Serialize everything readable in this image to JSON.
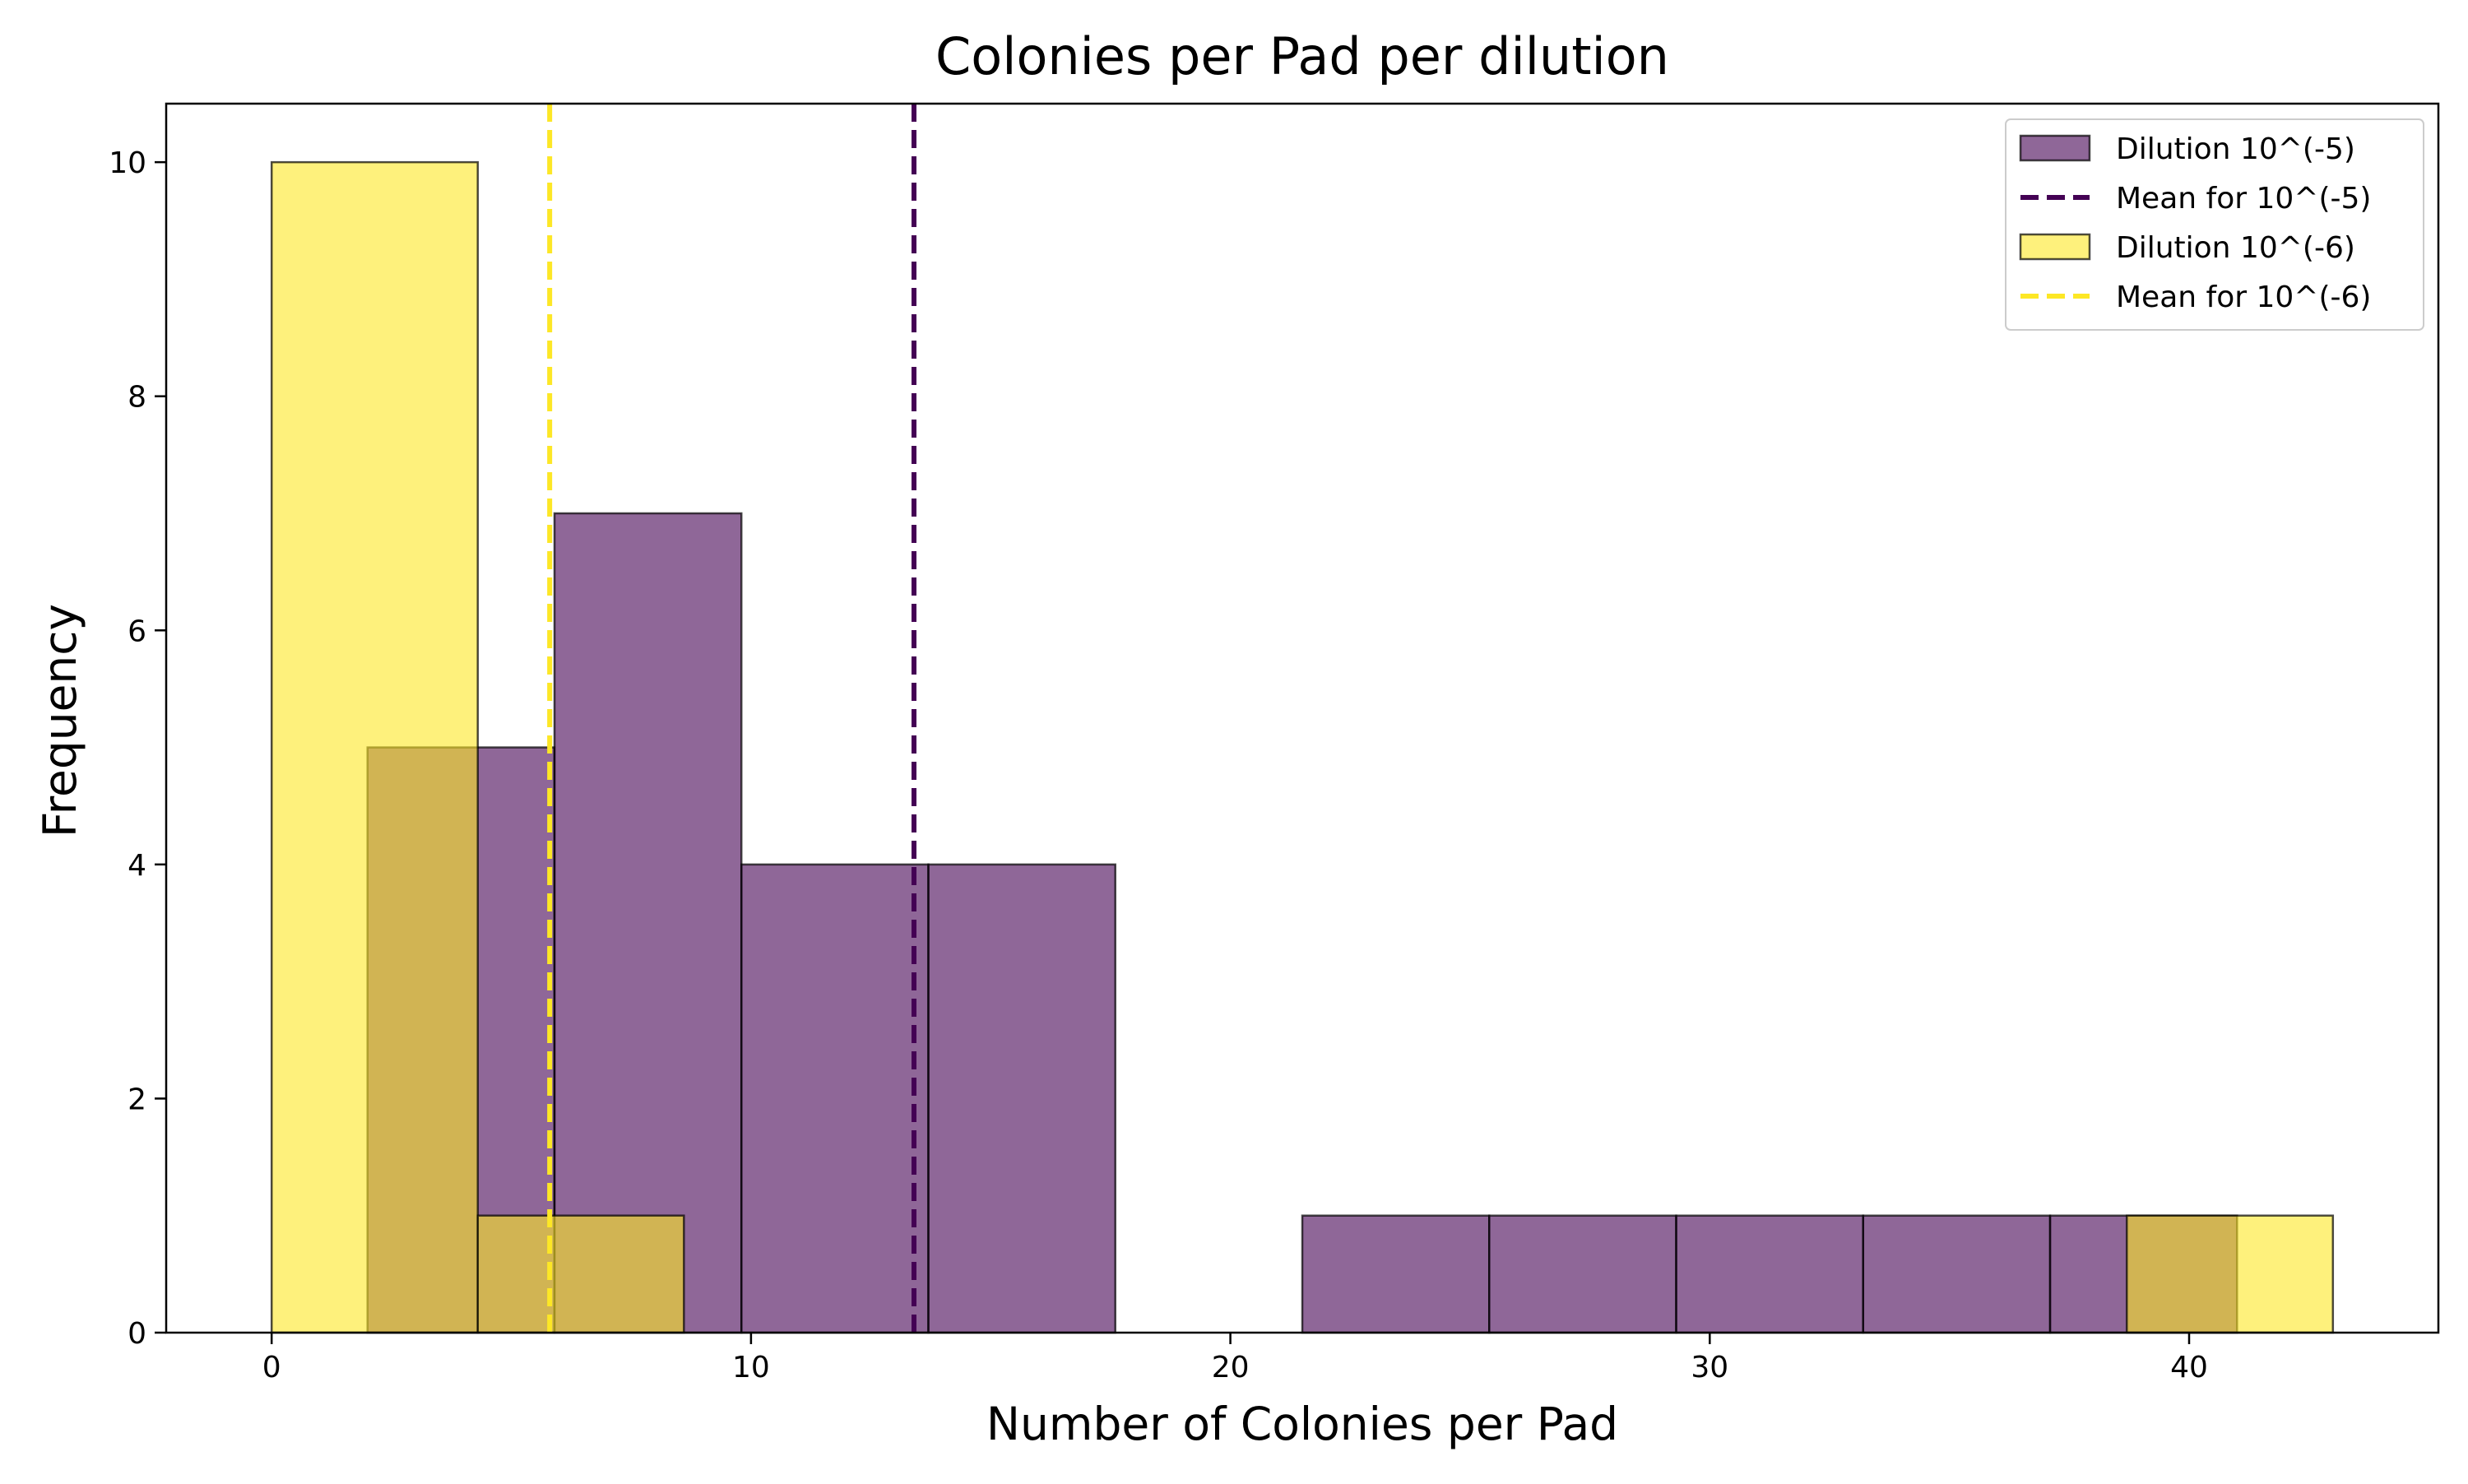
{
  "chart_data": {
    "type": "histogram",
    "title": "Colonies per Pad per dilution",
    "xlabel": "Number of Colonies per Pad",
    "ylabel": "Frequency",
    "xlim": [
      -2.2,
      45.2
    ],
    "ylim": [
      0,
      10.5
    ],
    "xticks": [
      0,
      10,
      20,
      30,
      40
    ],
    "yticks": [
      0,
      2,
      4,
      6,
      8,
      10
    ],
    "grid": false,
    "legend_position": "top-right",
    "series": [
      {
        "name": "Dilution 10^(-5)",
        "color": "#440154",
        "bins": [
          {
            "x0": 2,
            "x1": 5.9,
            "count": 5
          },
          {
            "x0": 5.9,
            "x1": 9.8,
            "count": 7
          },
          {
            "x0": 9.8,
            "x1": 13.7,
            "count": 4
          },
          {
            "x0": 13.7,
            "x1": 17.6,
            "count": 4
          },
          {
            "x0": 17.6,
            "x1": 21.5,
            "count": 0
          },
          {
            "x0": 21.5,
            "x1": 25.4,
            "count": 1
          },
          {
            "x0": 25.4,
            "x1": 29.3,
            "count": 1
          },
          {
            "x0": 29.3,
            "x1": 33.2,
            "count": 1
          },
          {
            "x0": 33.2,
            "x1": 37.1,
            "count": 1
          },
          {
            "x0": 37.1,
            "x1": 41,
            "count": 1
          }
        ]
      },
      {
        "name": "Dilution 10^(-6)",
        "color": "#fde725",
        "bins": [
          {
            "x0": 0,
            "x1": 4.3,
            "count": 10
          },
          {
            "x0": 4.3,
            "x1": 8.6,
            "count": 1
          },
          {
            "x0": 8.6,
            "x1": 12.9,
            "count": 0
          },
          {
            "x0": 12.9,
            "x1": 17.2,
            "count": 0
          },
          {
            "x0": 17.2,
            "x1": 21.5,
            "count": 0
          },
          {
            "x0": 21.5,
            "x1": 25.8,
            "count": 0
          },
          {
            "x0": 25.8,
            "x1": 30.1,
            "count": 0
          },
          {
            "x0": 30.1,
            "x1": 34.4,
            "count": 0
          },
          {
            "x0": 34.4,
            "x1": 38.7,
            "count": 0
          },
          {
            "x0": 38.7,
            "x1": 43,
            "count": 1
          }
        ]
      }
    ],
    "mean_lines": [
      {
        "name": "Mean for 10^(-5)",
        "x": 13.4,
        "color": "#440154"
      },
      {
        "name": "Mean for 10^(-6)",
        "x": 5.8,
        "color": "#fde725"
      }
    ],
    "legend": [
      {
        "label": "Dilution 10^(-5)",
        "kind": "patch",
        "color": "#440154"
      },
      {
        "label": "Mean for 10^(-5)",
        "kind": "dashed-line",
        "color": "#440154"
      },
      {
        "label": "Dilution 10^(-6)",
        "kind": "patch",
        "color": "#fde725"
      },
      {
        "label": "Mean for 10^(-6)",
        "kind": "dashed-line",
        "color": "#fde725"
      }
    ]
  }
}
